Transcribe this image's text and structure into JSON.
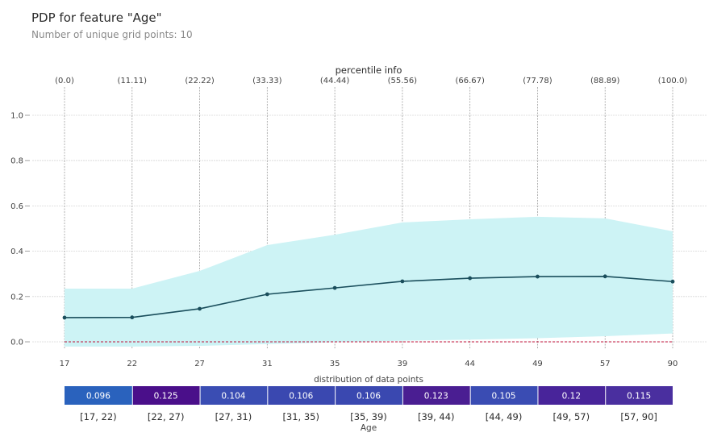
{
  "header": {
    "title": "PDP for feature \"Age\"",
    "subtitle": "Number of unique grid points: 10"
  },
  "chart_data": [
    {
      "type": "line",
      "title": "PDP for feature \"Age\"",
      "subtitle": "Number of unique grid points: 10",
      "top_axis_label": "percentile info",
      "percentile_labels": [
        "(0.0)",
        "(11.11)",
        "(22.22)",
        "(33.33)",
        "(44.44)",
        "(55.56)",
        "(66.67)",
        "(77.78)",
        "(88.89)",
        "(100.0)"
      ],
      "x": [
        "17",
        "22",
        "27",
        "31",
        "35",
        "39",
        "44",
        "49",
        "57",
        "90"
      ],
      "yticks": [
        "0.0",
        "0.2",
        "0.4",
        "0.6",
        "0.8",
        "1.0"
      ],
      "ylim": [
        -0.06,
        1.1
      ],
      "grid": true,
      "series": [
        {
          "name": "pdp",
          "color": "#1a4e5c",
          "values": [
            0.107,
            0.108,
            0.146,
            0.21,
            0.238,
            0.267,
            0.281,
            0.288,
            0.289,
            0.266
          ]
        },
        {
          "name": "upper",
          "values": [
            0.235,
            0.235,
            0.313,
            0.427,
            0.473,
            0.527,
            0.541,
            0.552,
            0.545,
            0.488
          ]
        },
        {
          "name": "lower",
          "values": [
            -0.021,
            -0.021,
            -0.018,
            -0.01,
            -0.002,
            0.005,
            0.01,
            0.016,
            0.025,
            0.037
          ]
        }
      ],
      "band_color": "#cdf3f5",
      "baseline": {
        "value": 0.0,
        "color": "#c0143c",
        "style": "dashed"
      }
    },
    {
      "type": "heatmap",
      "title": "distribution of data points",
      "xlabel": "Age",
      "categories": [
        "[17, 22)",
        "[22, 27)",
        "[27, 31)",
        "[31, 35)",
        "[35, 39)",
        "[39, 44)",
        "[44, 49)",
        "[49, 57)",
        "[57, 90]"
      ],
      "values": [
        0.096,
        0.125,
        0.104,
        0.106,
        0.106,
        0.123,
        0.105,
        0.12,
        0.115
      ],
      "value_labels": [
        "0.096",
        "0.125",
        "0.104",
        "0.106",
        "0.106",
        "0.123",
        "0.105",
        "0.12",
        "0.115"
      ],
      "colors": [
        "#2a62bd",
        "#4a0f8a",
        "#3a4db3",
        "#3a48b0",
        "#3a48b0",
        "#4a1e92",
        "#3a4cb3",
        "#48249a",
        "#4a2f9f"
      ]
    }
  ]
}
